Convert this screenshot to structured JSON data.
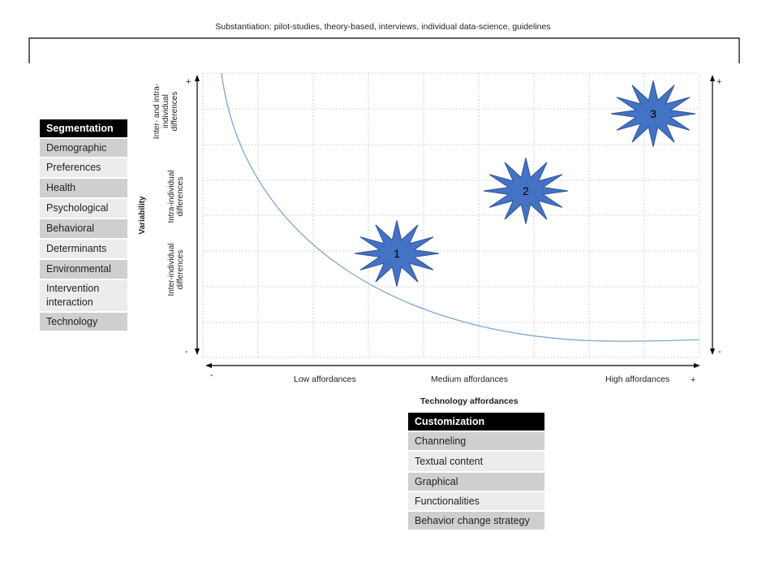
{
  "substantiation": "Substantiation: pilot-studies, theory-based, interviews, individual data-science, guidelines",
  "segmentation": {
    "header": "Segmentation",
    "items": [
      "Demographic",
      "Preferences",
      "Health",
      "Psychological",
      "Behavioral",
      "Determinants",
      "Environmental",
      "Intervention interaction",
      "Technology"
    ]
  },
  "customization": {
    "header": "Customization",
    "items": [
      "Channeling",
      "Textual content",
      "Graphical",
      "Functionalities",
      "Behavior change strategy"
    ]
  },
  "y_axis": {
    "title": "Variability",
    "bands": [
      "Inter- and intra-individual differences",
      "Intra-individual differences",
      "Inter-individual differences"
    ],
    "plus": "+",
    "minus": "-"
  },
  "x_axis": {
    "title": "Technology affordances",
    "labels": [
      "Low affordances",
      "Medium affordances",
      "High affordances"
    ],
    "plus": "+",
    "minus": "-"
  },
  "stars": [
    {
      "label": "1",
      "level": "Low affordances"
    },
    {
      "label": "2",
      "level": "Medium affordances"
    },
    {
      "label": "3",
      "level": "High affordances"
    }
  ],
  "colors": {
    "star_fill": "#4472c4",
    "star_stroke": "#2f5597",
    "curve": "#7ea6cf",
    "header_bg": "#000000",
    "row_dark": "#cfcfcf",
    "row_light": "#ececec"
  }
}
